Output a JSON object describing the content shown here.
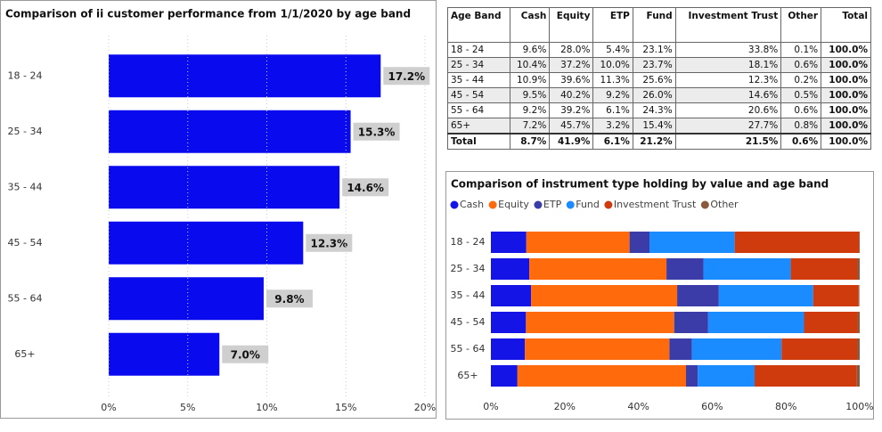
{
  "chart_data": [
    {
      "type": "bar",
      "title": "Comparison of ii customer performance from 1/1/2020 by age band",
      "categories": [
        "18 - 24",
        "25 - 34",
        "35 - 44",
        "45 - 54",
        "55 - 64",
        "65+"
      ],
      "values": [
        17.2,
        15.3,
        14.6,
        12.3,
        9.8,
        7.0
      ],
      "value_labels": [
        "17.2%",
        "15.3%",
        "14.6%",
        "12.3%",
        "9.8%",
        "7.0%"
      ],
      "color": "#0a0aef",
      "xlim": [
        0,
        20
      ],
      "xticks": [
        {
          "value": 0,
          "label": "0%"
        },
        {
          "value": 5,
          "label": "5%"
        },
        {
          "value": 10,
          "label": "10%"
        },
        {
          "value": 15,
          "label": "15%"
        },
        {
          "value": 20,
          "label": "20%"
        }
      ],
      "grid": true
    },
    {
      "type": "stacked_bar",
      "title": "Comparison of instrument type holding by value and age band",
      "categories": [
        "18 - 24",
        "25 - 34",
        "35 - 44",
        "45 - 54",
        "55 - 64",
        "65+"
      ],
      "series": [
        {
          "name": "Cash",
          "color": "#1414e6",
          "values": [
            9.6,
            10.4,
            10.9,
            9.5,
            9.2,
            7.2
          ]
        },
        {
          "name": "Equity",
          "color": "#ff6a0d",
          "values": [
            28.0,
            37.2,
            39.6,
            40.2,
            39.2,
            45.7
          ]
        },
        {
          "name": "ETP",
          "color": "#3c3ca8",
          "values": [
            5.4,
            10.0,
            11.3,
            9.2,
            6.1,
            3.2
          ]
        },
        {
          "name": "Fund",
          "color": "#1a8cff",
          "values": [
            23.1,
            23.7,
            25.6,
            26.0,
            24.3,
            15.4
          ]
        },
        {
          "name": "Investment Trust",
          "color": "#cf3b0c",
          "values": [
            33.8,
            18.1,
            12.3,
            14.6,
            20.6,
            27.7
          ]
        },
        {
          "name": "Other",
          "color": "#8b5a3c",
          "values": [
            0.1,
            0.6,
            0.2,
            0.5,
            0.6,
            0.8
          ]
        }
      ],
      "xlim": [
        0,
        100
      ],
      "xticks": [
        {
          "value": 0,
          "label": "0%"
        },
        {
          "value": 20,
          "label": "20%"
        },
        {
          "value": 40,
          "label": "40%"
        },
        {
          "value": 60,
          "label": "60%"
        },
        {
          "value": 80,
          "label": "80%"
        },
        {
          "value": 100,
          "label": "100%"
        }
      ],
      "grid": false,
      "legend": "top"
    }
  ],
  "table": {
    "columns": [
      "Age Band",
      "Cash",
      "Equity",
      "ETP",
      "Fund",
      "Investment Trust",
      "Other",
      "Total"
    ],
    "rows": [
      [
        "18 - 24",
        "9.6%",
        "28.0%",
        "5.4%",
        "23.1%",
        "33.8%",
        "0.1%",
        "100.0%"
      ],
      [
        "25 - 34",
        "10.4%",
        "37.2%",
        "10.0%",
        "23.7%",
        "18.1%",
        "0.6%",
        "100.0%"
      ],
      [
        "35 - 44",
        "10.9%",
        "39.6%",
        "11.3%",
        "25.6%",
        "12.3%",
        "0.2%",
        "100.0%"
      ],
      [
        "45 - 54",
        "9.5%",
        "40.2%",
        "9.2%",
        "26.0%",
        "14.6%",
        "0.5%",
        "100.0%"
      ],
      [
        "55 - 64",
        "9.2%",
        "39.2%",
        "6.1%",
        "24.3%",
        "20.6%",
        "0.6%",
        "100.0%"
      ],
      [
        "65+",
        "7.2%",
        "45.7%",
        "3.2%",
        "15.4%",
        "27.7%",
        "0.8%",
        "100.0%"
      ],
      [
        "Total",
        "8.7%",
        "41.9%",
        "6.1%",
        "21.2%",
        "21.5%",
        "0.6%",
        "100.0%"
      ]
    ]
  }
}
